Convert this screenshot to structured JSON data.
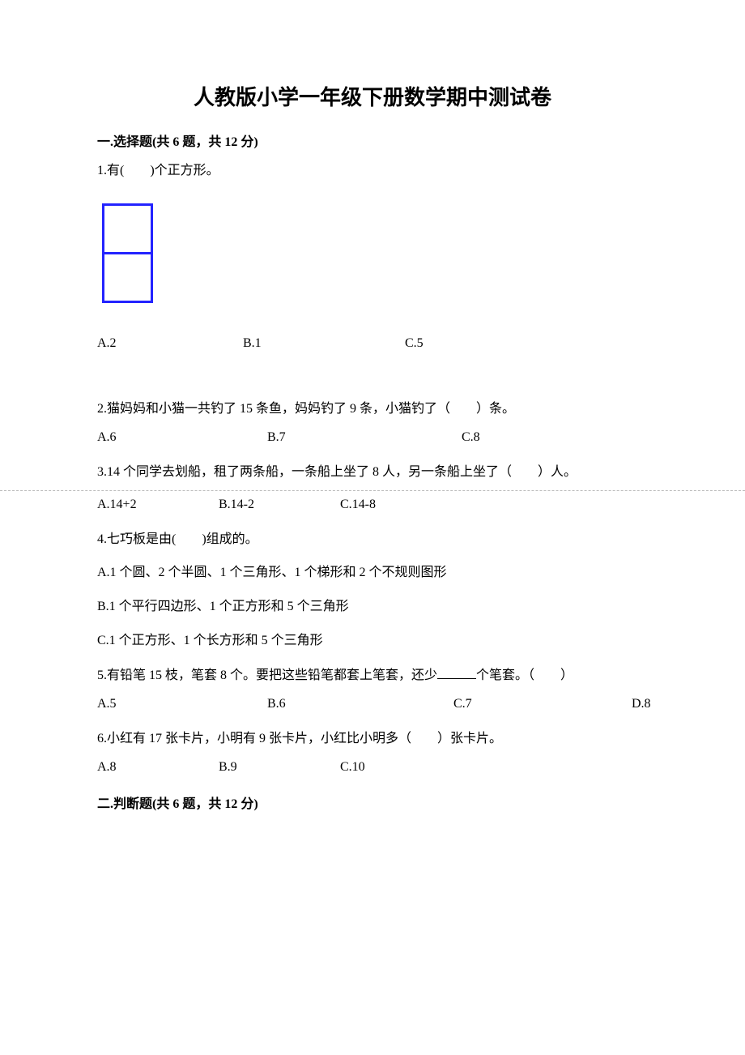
{
  "doc": {
    "title": "人教版小学一年级下册数学期中测试卷",
    "section1": {
      "header": "一.选择题(共 6 题，共 12 分)",
      "q1": {
        "text": "1.有(　　)个正方形。",
        "figure": {
          "cell_size": 60,
          "stroke": "#2323ff",
          "stroke_width": 3,
          "cells_vertical": 2
        },
        "opts": {
          "a": "A.2",
          "b": "B.1",
          "c": "C.5"
        },
        "widths": {
          "a": 180,
          "b": 200,
          "c": 0
        }
      },
      "q2": {
        "text": "2.猫妈妈和小猫一共钓了 15 条鱼，妈妈钓了 9 条，小猫钓了（　　）条。",
        "opts": {
          "a": "A.6",
          "b": "B.7",
          "c": "C.8"
        },
        "widths": {
          "a": 210,
          "b": 240,
          "c": 0
        }
      },
      "q3": {
        "text": "3.14 个同学去划船，租了两条船，一条船上坐了 8 人，另一条船上坐了（　　）人。",
        "opts": {
          "a": "A.14+2",
          "b": "B.14-2",
          "c": "C.14-8"
        },
        "widths": {
          "a": 150,
          "b": 150,
          "c": 0
        }
      },
      "q4": {
        "text": "4.七巧板是由(　　)组成的。",
        "opts": {
          "a": "A.1 个圆、2 个半圆、1 个三角形、1 个梯形和 2 个不规则图形",
          "b": "B.1 个平行四边形、1 个正方形和 5 个三角形",
          "c": "C.1 个正方形、1 个长方形和 5 个三角形"
        }
      },
      "q5": {
        "pre": "5.有铅笔 15 枝，笔套 8 个。要把这些铅笔都套上笔套，还少",
        "post": "个笔套。（　　）",
        "opts": {
          "a": "A.5",
          "b": "B.6",
          "c": "C.7",
          "d": "D.8"
        },
        "widths": {
          "a": 210,
          "b": 230,
          "c": 220,
          "d": 0
        }
      },
      "q6": {
        "text": "6.小红有 17 张卡片，小明有 9 张卡片，小红比小明多（　　）张卡片。",
        "opts": {
          "a": "A.8",
          "b": "B.9",
          "c": "C.10"
        },
        "widths": {
          "a": 150,
          "b": 150,
          "c": 0
        }
      }
    },
    "section2": {
      "header": "二.判断题(共 6 题，共 12 分)"
    }
  }
}
